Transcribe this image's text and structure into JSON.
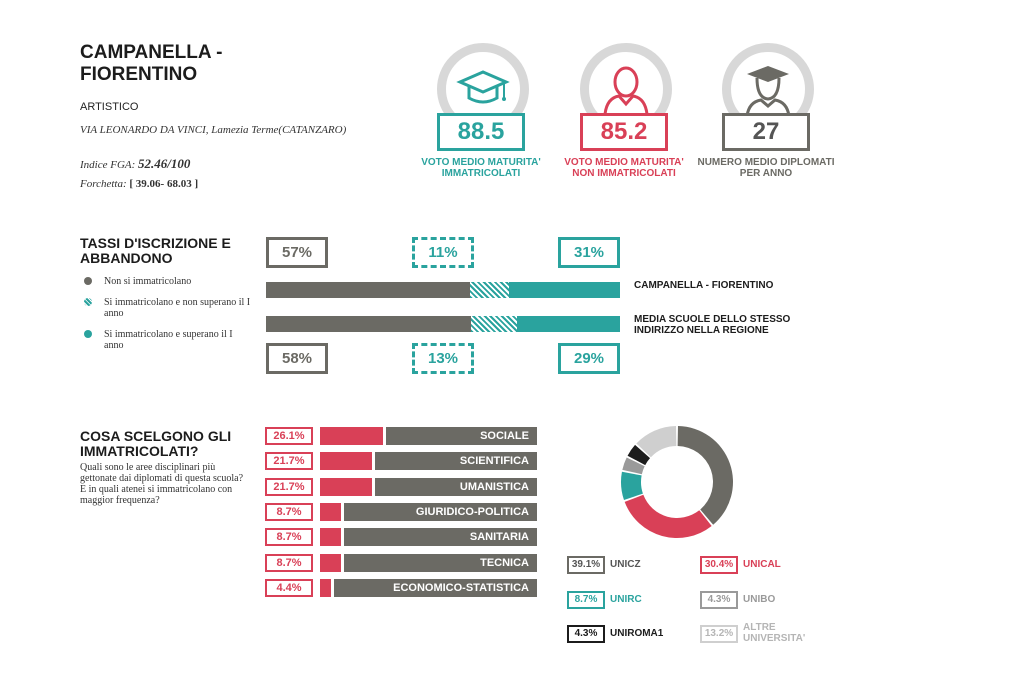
{
  "school": {
    "title": "CAMPANELLA - FIORENTINO",
    "type": "ARTISTICO",
    "address": "VIA LEONARDO DA VINCI, Lamezia Terme(CATANZARO)",
    "fga_label": "Indice FGA: ",
    "fga_value": "52.46/100",
    "fork_label": "Forchetta: ",
    "fork_value": "[ 39.06- 68.03 ]"
  },
  "stats": [
    {
      "value": "88.5",
      "label": "VOTO MEDIO MATURITA' IMMATRICOLATI",
      "color": "#2aa39e",
      "icon": "graduation-cap-icon"
    },
    {
      "value": "85.2",
      "label": "VOTO MEDIO MATURITA' NON IMMATRICOLATI",
      "color": "#d94057",
      "icon": "person-icon"
    },
    {
      "value": "27",
      "label": "NUMERO MEDIO DIPLOMATI PER ANNO",
      "color": "#6b6a64",
      "icon": "graduate-person-icon"
    }
  ],
  "enrollment": {
    "title": "TASSI D'ISCRIZIONE E ABBANDONO",
    "legend": [
      {
        "label": "Non si immatricolano",
        "color": "#6b6a64",
        "pattern": "solid"
      },
      {
        "label": "Si immatricolano e non superano il I anno",
        "color": "#2aa39e",
        "pattern": "hatched"
      },
      {
        "label": "Si immatricolano e superano il I anno",
        "color": "#2aa39e",
        "pattern": "solid"
      }
    ],
    "rows": [
      {
        "name": "CAMPANELLA - FIORENTINO",
        "values": [
          57,
          11,
          31
        ],
        "labels": [
          "57%",
          "11%",
          "31%"
        ]
      },
      {
        "name": "MEDIA SCUOLE DELLO STESSO INDIRIZZO NELLA REGIONE",
        "values": [
          58,
          13,
          29
        ],
        "labels": [
          "58%",
          "13%",
          "29%"
        ]
      }
    ]
  },
  "choices": {
    "title": "COSA SCELGONO GLI IMMATRICOLATI?",
    "description": "Quali sono le aree disciplinari più gettonate dai diplomati di questa scuola? E in quali atenei si immatricolano con maggior frequenza?",
    "areas": [
      {
        "label": "SOCIALE",
        "pct": "26.1%",
        "value": 26.1
      },
      {
        "label": "SCIENTIFICA",
        "pct": "21.7%",
        "value": 21.7
      },
      {
        "label": "UMANISTICA",
        "pct": "21.7%",
        "value": 21.7
      },
      {
        "label": "GIURIDICO-POLITICA",
        "pct": "8.7%",
        "value": 8.7
      },
      {
        "label": "SANITARIA",
        "pct": "8.7%",
        "value": 8.7
      },
      {
        "label": "TECNICA",
        "pct": "8.7%",
        "value": 8.7
      },
      {
        "label": "ECONOMICO-STATISTICA",
        "pct": "4.4%",
        "value": 4.4
      }
    ],
    "universities": [
      {
        "name": "UNICZ",
        "pct": "39.1%",
        "value": 39.1,
        "color": "#6b6a64"
      },
      {
        "name": "UNICAL",
        "pct": "30.4%",
        "value": 30.4,
        "color": "#d94057"
      },
      {
        "name": "UNIRC",
        "pct": "8.7%",
        "value": 8.7,
        "color": "#2aa39e"
      },
      {
        "name": "UNIBO",
        "pct": "4.3%",
        "value": 4.3,
        "color": "#9a9a9a"
      },
      {
        "name": "UNIROMA1",
        "pct": "4.3%",
        "value": 4.3,
        "color": "#1c1c1c"
      },
      {
        "name": "ALTRE UNIVERSITA'",
        "pct": "13.2%",
        "value": 13.2,
        "color": "#cfcfcf"
      }
    ]
  },
  "chart_data": [
    {
      "type": "bar",
      "stacked": true,
      "orientation": "horizontal",
      "title": "TASSI D'ISCRIZIONE E ABBANDONO",
      "categories": [
        "CAMPANELLA - FIORENTINO",
        "MEDIA SCUOLE DELLO STESSO INDIRIZZO NELLA REGIONE"
      ],
      "series": [
        {
          "name": "Non si immatricolano",
          "values": [
            57,
            58
          ]
        },
        {
          "name": "Si immatricolano e non superano il I anno",
          "values": [
            11,
            13
          ]
        },
        {
          "name": "Si immatricolano e superano il I anno",
          "values": [
            31,
            29
          ]
        }
      ]
    },
    {
      "type": "bar",
      "orientation": "horizontal",
      "title": "COSA SCELGONO GLI IMMATRICOLATI?",
      "categories": [
        "SOCIALE",
        "SCIENTIFICA",
        "UMANISTICA",
        "GIURIDICO-POLITICA",
        "SANITARIA",
        "TECNICA",
        "ECONOMICO-STATISTICA"
      ],
      "values": [
        26.1,
        21.7,
        21.7,
        8.7,
        8.7,
        8.7,
        4.4
      ]
    },
    {
      "type": "pie",
      "donut": true,
      "categories": [
        "UNICZ",
        "UNICAL",
        "UNIRC",
        "UNIBO",
        "UNIROMA1",
        "ALTRE UNIVERSITA'"
      ],
      "values": [
        39.1,
        30.4,
        8.7,
        4.3,
        4.3,
        13.2
      ]
    }
  ]
}
